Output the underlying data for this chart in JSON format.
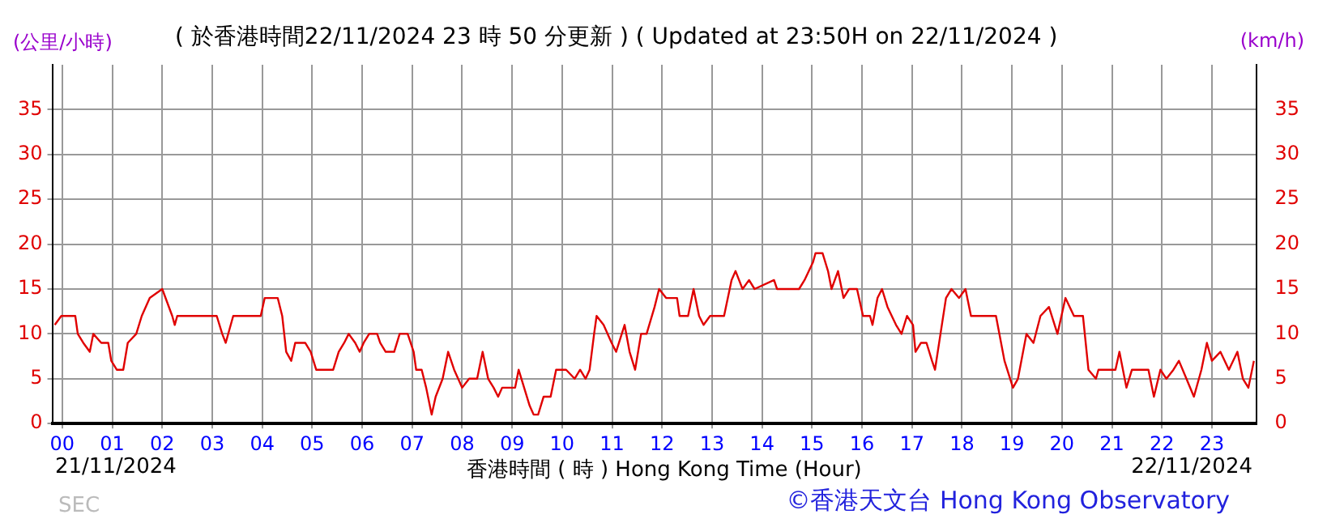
{
  "chart_data": {
    "type": "line",
    "title": "( 於香港時間22/11/2024 23 時 50 分更新 ) ( Updated at 23:50H on 22/11/2024 )",
    "xlabel": "香港時間 ( 時 ) Hong Kong Time (Hour)",
    "ylabel": "(公里/小時)",
    "y2label": "(km/h)",
    "annotations": [
      "21/11/2024",
      "22/11/2024",
      "SEC",
      "©香港天文台 Hong Kong Observatory"
    ],
    "grid": true,
    "legend": false,
    "marker": "none",
    "line_style": "solid",
    "xlim": [
      -0.2,
      23.9
    ],
    "xticks": [
      {
        "value": 0,
        "label": "00"
      },
      {
        "value": 1,
        "label": "01"
      },
      {
        "value": 2,
        "label": "02"
      },
      {
        "value": 3,
        "label": "03"
      },
      {
        "value": 4,
        "label": "04"
      },
      {
        "value": 5,
        "label": "05"
      },
      {
        "value": 6,
        "label": "06"
      },
      {
        "value": 7,
        "label": "07"
      },
      {
        "value": 8,
        "label": "08"
      },
      {
        "value": 9,
        "label": "09"
      },
      {
        "value": 10,
        "label": "10"
      },
      {
        "value": 11,
        "label": "11"
      },
      {
        "value": 12,
        "label": "12"
      },
      {
        "value": 13,
        "label": "13"
      },
      {
        "value": 14,
        "label": "14"
      },
      {
        "value": 15,
        "label": "15"
      },
      {
        "value": 16,
        "label": "16"
      },
      {
        "value": 17,
        "label": "17"
      },
      {
        "value": 18,
        "label": "18"
      },
      {
        "value": 19,
        "label": "19"
      },
      {
        "value": 20,
        "label": "20"
      },
      {
        "value": 21,
        "label": "21"
      },
      {
        "value": 22,
        "label": "22"
      },
      {
        "value": 23,
        "label": "23"
      }
    ],
    "ylim": [
      0,
      40
    ],
    "yticks": [
      0,
      5,
      10,
      15,
      20,
      25,
      30,
      35
    ],
    "y2lim": [
      0,
      40
    ],
    "y2ticks": [
      0,
      5,
      10,
      15,
      20,
      25,
      30,
      35
    ],
    "series": [
      {
        "color": "#e00000",
        "x": [
          -0.15,
          -0.02,
          0.26,
          0.31,
          0.42,
          0.55,
          0.62,
          0.78,
          0.92,
          0.98,
          1.09,
          1.22,
          1.31,
          1.48,
          1.59,
          1.75,
          2.0,
          2.2,
          2.25,
          2.3,
          3.09,
          3.2,
          3.27,
          3.42,
          3.97,
          4.05,
          4.31,
          4.4,
          4.48,
          4.58,
          4.66,
          4.86,
          4.97,
          5.08,
          5.42,
          5.53,
          5.64,
          5.73,
          5.86,
          5.95,
          6.03,
          6.14,
          6.3,
          6.36,
          6.47,
          6.64,
          6.75,
          6.91,
          7.03,
          7.08,
          7.19,
          7.28,
          7.39,
          7.47,
          7.61,
          7.72,
          7.84,
          8.0,
          8.14,
          8.3,
          8.41,
          8.52,
          8.63,
          8.72,
          8.8,
          9.06,
          9.13,
          9.24,
          9.35,
          9.43,
          9.52,
          9.63,
          9.77,
          9.88,
          10.08,
          10.25,
          10.36,
          10.47,
          10.55,
          10.64,
          10.69,
          10.83,
          10.99,
          11.08,
          11.25,
          11.35,
          11.46,
          11.58,
          11.69,
          11.85,
          11.94,
          12.08,
          12.3,
          12.35,
          12.52,
          12.63,
          12.74,
          12.83,
          12.96,
          13.24,
          13.39,
          13.47,
          13.61,
          13.74,
          13.85,
          14.24,
          14.3,
          14.74,
          14.85,
          15.02,
          15.07,
          15.21,
          15.32,
          15.39,
          15.52,
          15.63,
          15.74,
          15.9,
          16.02,
          16.16,
          16.21,
          16.31,
          16.4,
          16.51,
          16.68,
          16.79,
          16.9,
          17.02,
          17.07,
          17.18,
          17.29,
          17.4,
          17.46,
          17.57,
          17.68,
          17.79,
          17.94,
          18.07,
          18.18,
          18.68,
          18.85,
          19.02,
          19.12,
          19.29,
          19.43,
          19.57,
          19.74,
          19.91,
          20.07,
          20.24,
          20.42,
          20.53,
          20.68,
          20.73,
          20.96,
          21.07,
          21.15,
          21.29,
          21.4,
          21.73,
          21.84,
          21.97,
          22.09,
          22.23,
          22.34,
          22.49,
          22.64,
          22.79,
          22.9,
          23.0,
          23.17,
          23.34,
          23.51,
          23.62,
          23.73,
          23.84
        ],
        "values": [
          11,
          12,
          12,
          10,
          9,
          8,
          10,
          9,
          9,
          7,
          6,
          6,
          9,
          10,
          12,
          14,
          15,
          12,
          11,
          12,
          12,
          10,
          9,
          12,
          12,
          14,
          14,
          12,
          8,
          7,
          9,
          9,
          8,
          6,
          6,
          8,
          9,
          10,
          9,
          8,
          9,
          10,
          10,
          9,
          8,
          8,
          10,
          10,
          8,
          6,
          6,
          4,
          1,
          3,
          5,
          8,
          6,
          4,
          5,
          5,
          8,
          5,
          4,
          3,
          4,
          4,
          6,
          4,
          2,
          1,
          1,
          3,
          3,
          6,
          6,
          5,
          6,
          5,
          6,
          10,
          12,
          11,
          9,
          8,
          11,
          8,
          6,
          10,
          10,
          13,
          15,
          14,
          14,
          12,
          12,
          15,
          12,
          11,
          12,
          12,
          16,
          17,
          15,
          16,
          15,
          16,
          15,
          15,
          16,
          18,
          19,
          19,
          17,
          15,
          17,
          14,
          15,
          15,
          12,
          12,
          11,
          14,
          15,
          13,
          11,
          10,
          12,
          11,
          8,
          9,
          9,
          7,
          6,
          10,
          14,
          15,
          14,
          15,
          12,
          12,
          7,
          4,
          5,
          10,
          9,
          12,
          13,
          10,
          14,
          12,
          12,
          6,
          5,
          6,
          6,
          6,
          8,
          4,
          6,
          6,
          3,
          6,
          5,
          6,
          7,
          5,
          3,
          6,
          9,
          7,
          8,
          6,
          8,
          5,
          4,
          7
        ]
      }
    ]
  }
}
